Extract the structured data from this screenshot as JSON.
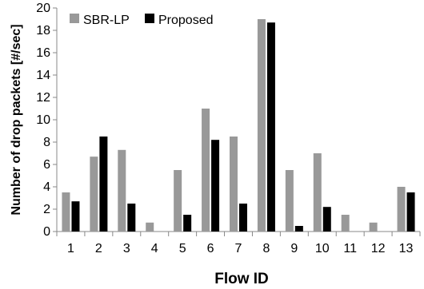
{
  "chart_data": {
    "type": "bar",
    "title": "",
    "xlabel": "Flow ID",
    "ylabel": "Number  of drop packets [#/sec]",
    "ylim": [
      0,
      20
    ],
    "ytick_step": 2,
    "grid": false,
    "legend_position": "top-left",
    "categories": [
      "1",
      "2",
      "3",
      "4",
      "5",
      "6",
      "7",
      "8",
      "9",
      "10",
      "11",
      "12",
      "13"
    ],
    "series": [
      {
        "name": "SBR-LP",
        "color": "#999999",
        "values": [
          3.5,
          6.7,
          7.3,
          0.8,
          5.5,
          11.0,
          8.5,
          19.0,
          5.5,
          7.0,
          1.5,
          0.8,
          4.0
        ]
      },
      {
        "name": "Proposed",
        "color": "#000000",
        "values": [
          2.7,
          8.5,
          2.5,
          0,
          1.5,
          8.2,
          2.5,
          18.7,
          0.5,
          2.2,
          0,
          0,
          3.5
        ]
      }
    ]
  }
}
